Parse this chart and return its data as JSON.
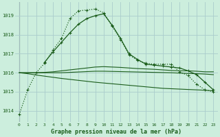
{
  "title": "Graphe pression niveau de la mer (hPa)",
  "background_color": "#cceedd",
  "grid_color": "#aacccc",
  "line_color": "#1a5c1a",
  "xlim": [
    -0.5,
    23.5
  ],
  "ylim": [
    1013.4,
    1019.7
  ],
  "yticks": [
    1014,
    1015,
    1016,
    1017,
    1018,
    1019
  ],
  "xticks": [
    0,
    1,
    2,
    3,
    4,
    5,
    6,
    7,
    8,
    9,
    10,
    11,
    12,
    13,
    14,
    15,
    16,
    17,
    18,
    19,
    20,
    21,
    22,
    23
  ],
  "series": [
    {
      "x": [
        0,
        1,
        2,
        3,
        4,
        5,
        6,
        7,
        8,
        9,
        10,
        11,
        12,
        13,
        14,
        15,
        16,
        17,
        18,
        19,
        20,
        21,
        22,
        23
      ],
      "y": [
        1013.8,
        1015.1,
        1016.0,
        1016.5,
        1017.2,
        1017.8,
        1018.85,
        1019.25,
        1019.3,
        1019.35,
        1019.15,
        1018.45,
        1017.75,
        1016.95,
        1016.65,
        1016.5,
        1016.45,
        1016.45,
        1016.45,
        1016.05,
        1015.85,
        1015.4,
        1015.1,
        1015.0
      ],
      "linestyle": "dotted",
      "marker": true,
      "linewidth": 0.9
    },
    {
      "x": [
        3,
        4,
        5,
        6,
        7,
        8,
        9,
        10,
        11,
        12,
        13,
        14,
        15,
        16,
        17,
        18,
        19,
        20,
        21,
        22,
        23
      ],
      "y": [
        1016.55,
        1017.1,
        1017.6,
        1018.1,
        1018.55,
        1018.85,
        1019.0,
        1019.1,
        1018.5,
        1017.8,
        1017.0,
        1016.7,
        1016.45,
        1016.4,
        1016.35,
        1016.3,
        1016.25,
        1016.1,
        1015.9,
        1015.5,
        1015.1
      ],
      "linestyle": "solid",
      "marker": true,
      "linewidth": 0.9
    },
    {
      "x": [
        0,
        1,
        2,
        3,
        4,
        5,
        6,
        7,
        8,
        9,
        10,
        11,
        12,
        13,
        14,
        15,
        16,
        17,
        18,
        19,
        20,
        21,
        22,
        23
      ],
      "y": [
        1016.0,
        1016.0,
        1016.0,
        1016.02,
        1016.05,
        1016.1,
        1016.15,
        1016.2,
        1016.25,
        1016.3,
        1016.32,
        1016.3,
        1016.28,
        1016.25,
        1016.22,
        1016.2,
        1016.18,
        1016.15,
        1016.12,
        1016.1,
        1016.1,
        1016.08,
        1016.05,
        1016.05
      ],
      "linestyle": "solid",
      "marker": false,
      "linewidth": 0.8
    },
    {
      "x": [
        0,
        1,
        2,
        3,
        4,
        5,
        6,
        7,
        8,
        9,
        10,
        11,
        12,
        13,
        14,
        15,
        16,
        17,
        18,
        19,
        20,
        21,
        22,
        23
      ],
      "y": [
        1016.0,
        1016.0,
        1016.0,
        1016.0,
        1016.0,
        1016.0,
        1016.02,
        1016.04,
        1016.06,
        1016.08,
        1016.08,
        1016.07,
        1016.06,
        1016.05,
        1016.04,
        1016.03,
        1016.02,
        1016.01,
        1016.0,
        1015.98,
        1015.96,
        1015.95,
        1015.93,
        1015.9
      ],
      "linestyle": "solid",
      "marker": false,
      "linewidth": 0.8
    },
    {
      "x": [
        0,
        1,
        2,
        3,
        4,
        5,
        6,
        7,
        8,
        9,
        10,
        11,
        12,
        13,
        14,
        15,
        16,
        17,
        18,
        19,
        20,
        21,
        22,
        23
      ],
      "y": [
        1016.0,
        1015.95,
        1015.88,
        1015.82,
        1015.76,
        1015.7,
        1015.65,
        1015.6,
        1015.55,
        1015.5,
        1015.46,
        1015.42,
        1015.38,
        1015.34,
        1015.3,
        1015.26,
        1015.22,
        1015.18,
        1015.16,
        1015.14,
        1015.12,
        1015.1,
        1015.08,
        1015.05
      ],
      "linestyle": "solid",
      "marker": false,
      "linewidth": 0.8
    }
  ]
}
